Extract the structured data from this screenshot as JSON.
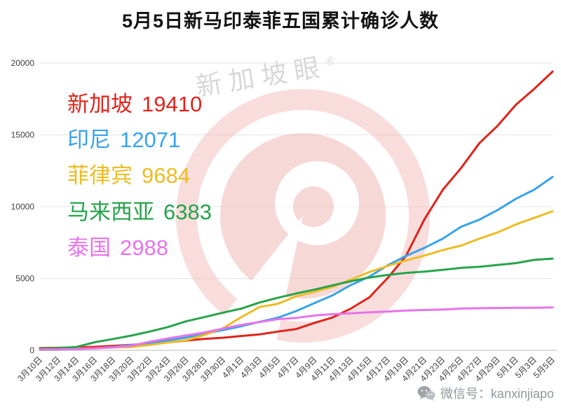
{
  "title": "5月5日新马印泰菲五国累计确诊人数",
  "watermark": {
    "brand": "新加坡眼",
    "registered": "®",
    "wechat_label": "微信号：kanxinjiapo"
  },
  "chart_data": {
    "type": "line",
    "title": "5月5日新马印泰菲五国累计确诊人数",
    "xlabel": "",
    "ylabel": "",
    "ylim": [
      0,
      20000
    ],
    "yticks": [
      0,
      5000,
      10000,
      15000,
      20000
    ],
    "grid": true,
    "legend_position": "inside-top-left",
    "x": [
      "3月10日",
      "3月12日",
      "3月14日",
      "3月16日",
      "3月18日",
      "3月20日",
      "3月22日",
      "3月24日",
      "3月26日",
      "3月28日",
      "3月30日",
      "4月1日",
      "4月3日",
      "4月5日",
      "4月7日",
      "4月9日",
      "4月11日",
      "4月13日",
      "4月15日",
      "4月17日",
      "4月19日",
      "4月21日",
      "4月23日",
      "4月25日",
      "4月27日",
      "4月29日",
      "5月1日",
      "5月3日",
      "5月5日"
    ],
    "series": [
      {
        "name": "新加坡",
        "total": 19410,
        "color": "#e0241b",
        "values": [
          160,
          178,
          212,
          243,
          313,
          385,
          455,
          558,
          683,
          802,
          879,
          1000,
          1114,
          1309,
          1481,
          1910,
          2299,
          2918,
          3699,
          5050,
          6588,
          9125,
          11178,
          12693,
          14423,
          15641,
          17101,
          18205,
          19410
        ]
      },
      {
        "name": "印尼",
        "total": 12071,
        "color": "#38a3ea",
        "values": [
          27,
          34,
          96,
          134,
          227,
          369,
          514,
          686,
          893,
          1155,
          1414,
          1677,
          1986,
          2273,
          2738,
          3293,
          3842,
          4557,
          5136,
          5923,
          6575,
          7135,
          7775,
          8607,
          9096,
          9771,
          10551,
          11192,
          12071
        ]
      },
      {
        "name": "菲律宾",
        "total": 9684,
        "color": "#edbc23",
        "values": [
          33,
          52,
          111,
          142,
          202,
          230,
          380,
          552,
          707,
          1075,
          1546,
          2311,
          3018,
          3246,
          3764,
          4076,
          4428,
          4932,
          5453,
          5878,
          6259,
          6599,
          6981,
          7294,
          7777,
          8212,
          8772,
          9223,
          9684
        ]
      },
      {
        "name": "马来西亚",
        "total": 6383,
        "color": "#27a34c",
        "values": [
          129,
          158,
          238,
          566,
          790,
          1030,
          1306,
          1624,
          2031,
          2320,
          2626,
          2908,
          3333,
          3662,
          3963,
          4228,
          4530,
          4817,
          5072,
          5251,
          5389,
          5482,
          5603,
          5742,
          5820,
          5945,
          6071,
          6298,
          6383
        ]
      },
      {
        "name": "泰国",
        "total": 2988,
        "color": "#e873ea",
        "values": [
          53,
          70,
          82,
          147,
          212,
          322,
          599,
          827,
          1045,
          1245,
          1524,
          1771,
          1978,
          2169,
          2258,
          2423,
          2518,
          2579,
          2643,
          2700,
          2765,
          2811,
          2839,
          2907,
          2931,
          2947,
          2960,
          2966,
          2988
        ]
      }
    ]
  }
}
